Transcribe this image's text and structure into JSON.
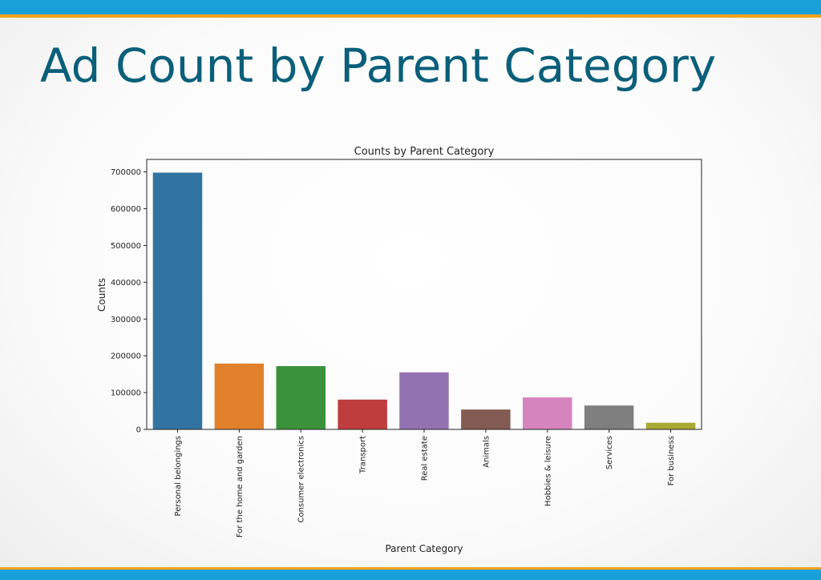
{
  "slide": {
    "title": "Ad Count by Parent Category"
  },
  "chart_data": {
    "type": "bar",
    "title": "Counts by Parent Category",
    "xlabel": "Parent Category",
    "ylabel": "Counts",
    "categories": [
      "Personal belongings",
      "For the home and garden",
      "Consumer electronics",
      "Transport",
      "Real estate",
      "Animals",
      "Hobbies & leisure",
      "Services",
      "For business"
    ],
    "values": [
      698000,
      179000,
      172000,
      81000,
      155000,
      54000,
      87000,
      65000,
      18000
    ],
    "colors": [
      "#3274a1",
      "#e1812c",
      "#3a923a",
      "#c03d3e",
      "#9372b2",
      "#845b53",
      "#d684bd",
      "#7f7f7f",
      "#a9aa35"
    ],
    "yticks": [
      0,
      100000,
      200000,
      300000,
      400000,
      500000,
      600000,
      700000
    ],
    "ylim": [
      0,
      734000
    ],
    "grid": false,
    "legend": "none"
  }
}
